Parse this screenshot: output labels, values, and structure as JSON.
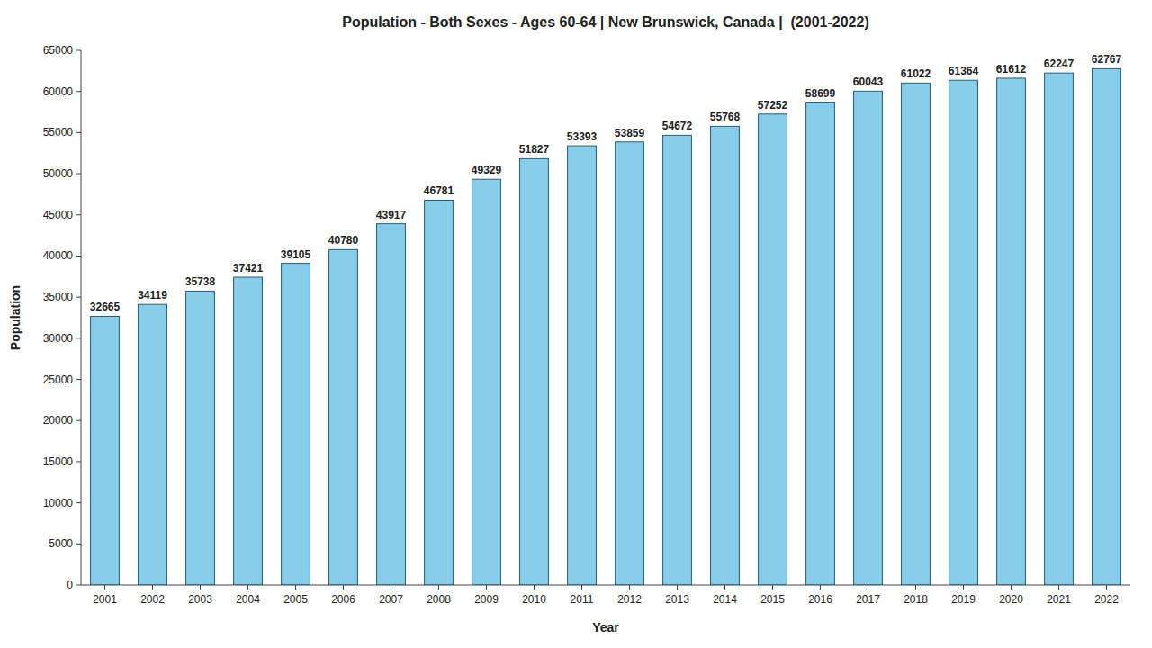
{
  "chart_data": {
    "type": "bar",
    "title": "Population - Both Sexes - Ages 60-64 | New Brunswick, Canada |  (2001-2022)",
    "xlabel": "Year",
    "ylabel": "Population",
    "categories": [
      "2001",
      "2002",
      "2003",
      "2004",
      "2005",
      "2006",
      "2007",
      "2008",
      "2009",
      "2010",
      "2011",
      "2012",
      "2013",
      "2014",
      "2015",
      "2016",
      "2017",
      "2018",
      "2019",
      "2020",
      "2021",
      "2022"
    ],
    "values": [
      32665,
      34119,
      35738,
      37421,
      39105,
      40780,
      43917,
      46781,
      49329,
      51827,
      53393,
      53859,
      54672,
      55768,
      57252,
      58699,
      60043,
      61022,
      61364,
      61612,
      62247,
      62767
    ],
    "color": "#87CEEB",
    "ylim": [
      0,
      65000
    ],
    "yticks": [
      0,
      5000,
      10000,
      15000,
      20000,
      25000,
      30000,
      35000,
      40000,
      45000,
      50000,
      55000,
      60000,
      65000
    ],
    "grid": false,
    "data_labels": true
  }
}
